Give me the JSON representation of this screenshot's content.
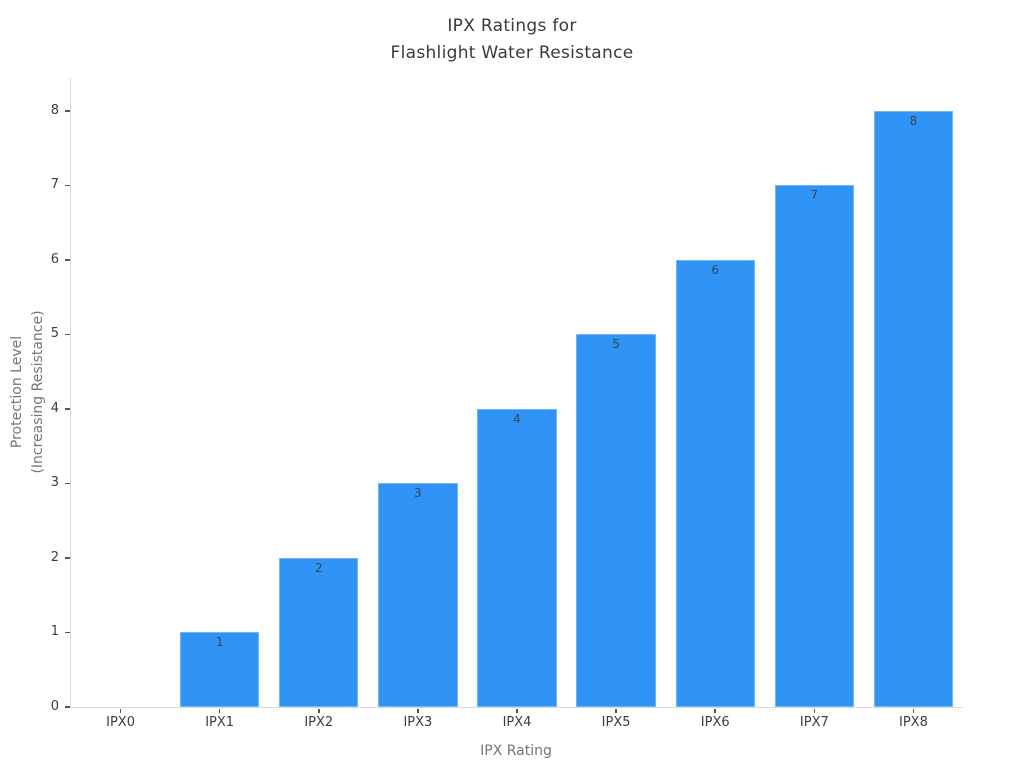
{
  "chart_data": {
    "type": "bar",
    "title": "IPX Ratings for\nFlashlight Water Resistance",
    "xlabel": "IPX Rating",
    "ylabel": "Protection Level\n(Increasing Resistance)",
    "categories": [
      "IPX0",
      "IPX1",
      "IPX2",
      "IPX3",
      "IPX4",
      "IPX5",
      "IPX6",
      "IPX7",
      "IPX8"
    ],
    "values": [
      0,
      1,
      2,
      3,
      4,
      5,
      6,
      7,
      8
    ],
    "bar_labels": [
      "",
      "1",
      "2",
      "3",
      "4",
      "5",
      "6",
      "7",
      "8"
    ],
    "yticks": [
      0,
      1,
      2,
      3,
      4,
      5,
      6,
      7,
      8
    ],
    "ylim": [
      0,
      8.44
    ],
    "grid": false,
    "legend": null,
    "bar_width_fraction": 0.8,
    "colors": {
      "background": "#FFFFFF",
      "bar": "#2F94F5",
      "bar_edge": "#6FB6F7",
      "bar_label": "#3A4652",
      "spine": "#D9D9D9",
      "tick": "#555555",
      "tick_label": "#3D3D3D",
      "axis_label": "#757575",
      "title": "#3A3A3A"
    }
  }
}
